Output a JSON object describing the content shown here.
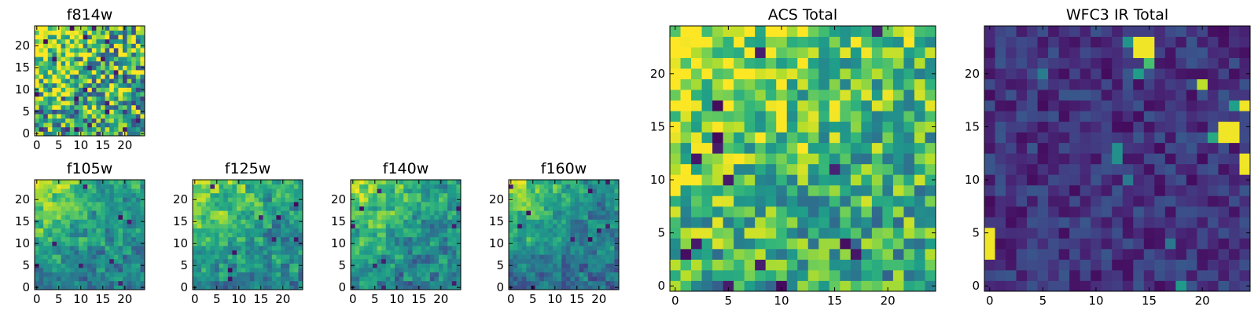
{
  "figure": {
    "colormap": "viridis",
    "colormap_stops": [
      "#440154",
      "#482878",
      "#3e4a89",
      "#31688e",
      "#26828e",
      "#1f9e89",
      "#35b779",
      "#6ece58",
      "#b5de2b",
      "#fde725"
    ]
  },
  "chart_data": [
    {
      "id": "f814w",
      "type": "heatmap",
      "title": "f814w",
      "grid_size": 25,
      "xlim": [
        0,
        24
      ],
      "ylim": [
        0,
        24
      ],
      "xticks": [
        0,
        5,
        10,
        15,
        20
      ],
      "yticks": [
        0,
        5,
        10,
        15,
        20
      ],
      "texture": {
        "noise": 0.45,
        "warm_corner": 0.6,
        "dark_spots": 18,
        "bright_spots": 0,
        "base": 0.62,
        "seed": 11,
        "cell_block": 1
      }
    },
    {
      "id": "f105w",
      "type": "heatmap",
      "title": "f105w",
      "grid_size": 25,
      "xlim": [
        0,
        24
      ],
      "ylim": [
        0,
        24
      ],
      "xticks": [
        0,
        5,
        10,
        15,
        20
      ],
      "yticks": [
        0,
        5,
        10,
        15,
        20
      ],
      "texture": {
        "noise": 0.22,
        "warm_corner": 0.55,
        "dark_spots": 8,
        "bright_spots": 0,
        "base": 0.5,
        "seed": 23,
        "cell_block": 2
      }
    },
    {
      "id": "f125w",
      "type": "heatmap",
      "title": "f125w",
      "grid_size": 25,
      "xlim": [
        0,
        24
      ],
      "ylim": [
        0,
        24
      ],
      "xticks": [
        0,
        5,
        10,
        15,
        20
      ],
      "yticks": [
        0,
        5,
        10,
        15,
        20
      ],
      "texture": {
        "noise": 0.24,
        "warm_corner": 0.5,
        "dark_spots": 9,
        "bright_spots": 0,
        "base": 0.52,
        "seed": 37,
        "cell_block": 2
      }
    },
    {
      "id": "f140w",
      "type": "heatmap",
      "title": "f140w",
      "grid_size": 25,
      "xlim": [
        0,
        24
      ],
      "ylim": [
        0,
        24
      ],
      "xticks": [
        0,
        5,
        10,
        15,
        20
      ],
      "yticks": [
        0,
        5,
        10,
        15,
        20
      ],
      "texture": {
        "noise": 0.24,
        "warm_corner": 0.55,
        "dark_spots": 9,
        "bright_spots": 0,
        "base": 0.5,
        "seed": 41,
        "cell_block": 2
      }
    },
    {
      "id": "f160w",
      "type": "heatmap",
      "title": "f160w",
      "grid_size": 25,
      "xlim": [
        0,
        24
      ],
      "ylim": [
        0,
        24
      ],
      "xticks": [
        0,
        5,
        10,
        15,
        20
      ],
      "yticks": [
        0,
        5,
        10,
        15,
        20
      ],
      "texture": {
        "noise": 0.22,
        "warm_corner": 0.55,
        "dark_spots": 10,
        "bright_spots": 0,
        "base": 0.44,
        "seed": 53,
        "cell_block": 2
      }
    },
    {
      "id": "acs-total",
      "type": "heatmap",
      "title": "ACS Total",
      "grid_size": 25,
      "xlim": [
        0,
        24
      ],
      "ylim": [
        0,
        24
      ],
      "xticks": [
        0,
        5,
        10,
        15,
        20
      ],
      "yticks": [
        0,
        5,
        10,
        15,
        20
      ],
      "texture": {
        "noise": 0.3,
        "warm_corner": 0.45,
        "dark_spots": 16,
        "bright_spots": 0,
        "base": 0.66,
        "seed": 67,
        "cell_block": 1
      }
    },
    {
      "id": "wfc3-ir-total",
      "type": "heatmap",
      "title": "WFC3 IR Total",
      "grid_size": 25,
      "xlim": [
        0,
        24
      ],
      "ylim": [
        0,
        24
      ],
      "xticks": [
        0,
        5,
        10,
        15,
        20
      ],
      "yticks": [
        0,
        5,
        10,
        15,
        20
      ],
      "texture": {
        "noise": 0.12,
        "warm_corner": 0.0,
        "dark_spots": 10,
        "bright_spots": 6,
        "base": 0.15,
        "seed": 79,
        "cell_block": 1
      },
      "bright_regions": [
        {
          "x": [
            14,
            15
          ],
          "y": [
            22,
            23
          ],
          "value": 0.98
        },
        {
          "x": [
            15,
            15
          ],
          "y": [
            21,
            21
          ],
          "value": 0.7
        },
        {
          "x": [
            14,
            14
          ],
          "y": [
            20,
            20
          ],
          "value": 0.55
        },
        {
          "x": [
            22,
            23
          ],
          "y": [
            14,
            15
          ],
          "value": 0.98
        },
        {
          "x": [
            21,
            21
          ],
          "y": [
            14,
            14
          ],
          "value": 0.6
        },
        {
          "x": [
            0,
            0
          ],
          "y": [
            3,
            5
          ],
          "value": 0.98
        },
        {
          "x": [
            12,
            12
          ],
          "y": [
            12,
            13
          ],
          "value": 0.5
        },
        {
          "x": [
            24,
            24
          ],
          "y": [
            17,
            17
          ],
          "value": 0.98
        },
        {
          "x": [
            24,
            24
          ],
          "y": [
            11,
            12
          ],
          "value": 0.98
        },
        {
          "x": [
            20,
            20
          ],
          "y": [
            19,
            19
          ],
          "value": 0.9
        }
      ]
    }
  ]
}
